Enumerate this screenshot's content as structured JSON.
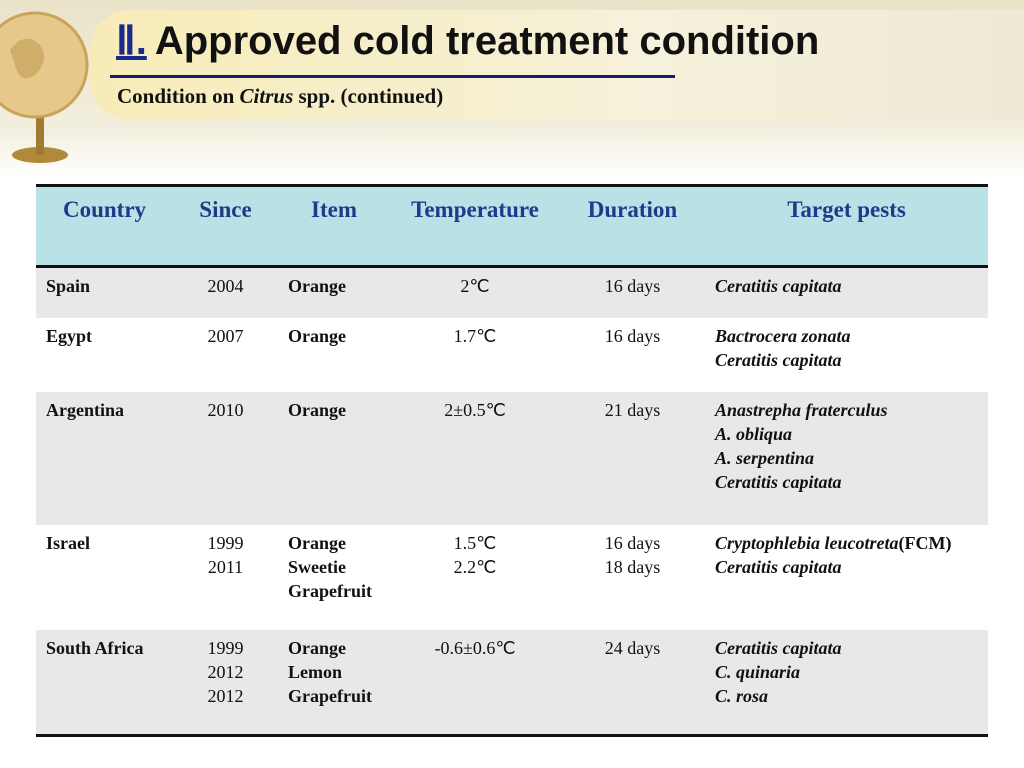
{
  "header": {
    "numeral": "Ⅱ.",
    "title": "Approved cold treatment condition",
    "subtitle": {
      "before": "Condition on",
      "italic": "Citrus",
      "after": "spp. (continued)"
    }
  },
  "table": {
    "columns": [
      "Country",
      "Since",
      "Item",
      "Temperature",
      "Duration",
      "Target pests"
    ],
    "rows": [
      {
        "country": "Spain",
        "since": [
          "2004"
        ],
        "item": [
          "Orange"
        ],
        "temperature": [
          "2℃"
        ],
        "duration": [
          "16 days"
        ],
        "pests": [
          "Ceratitis capitata"
        ]
      },
      {
        "country": "Egypt",
        "since": [
          "2007"
        ],
        "item": [
          "Orange"
        ],
        "temperature": [
          "1.7℃"
        ],
        "duration": [
          "16 days"
        ],
        "pests": [
          "Bactrocera zonata",
          "Ceratitis capitata"
        ]
      },
      {
        "country": "Argentina",
        "since": [
          "2010"
        ],
        "item": [
          "Orange"
        ],
        "temperature": [
          "2±0.5℃"
        ],
        "duration": [
          "21 days"
        ],
        "pests": [
          "Anastrepha fraterculus",
          "A. obliqua",
          "A. serpentina",
          "Ceratitis capitata"
        ]
      },
      {
        "country": "Israel",
        "since": [
          "1999",
          "2011"
        ],
        "item": [
          "Orange",
          "Sweetie",
          "Grapefruit"
        ],
        "temperature": [
          "1.5℃",
          "2.2℃"
        ],
        "duration": [
          "16 days",
          "18 days"
        ],
        "pests": [
          {
            "name": "Cryptophlebia leucotreta",
            "note": "(FCM)"
          },
          "Ceratitis capitata"
        ]
      },
      {
        "country": "South Africa",
        "since": [
          "1999",
          "2012",
          "2012"
        ],
        "item": [
          "Orange",
          "Lemon",
          "Grapefruit"
        ],
        "temperature": [
          "-0.6±0.6℃"
        ],
        "duration": [
          "24 days"
        ],
        "pests": [
          "Ceratitis capitata",
          "C. quinaria",
          "C. rosa"
        ]
      }
    ]
  }
}
